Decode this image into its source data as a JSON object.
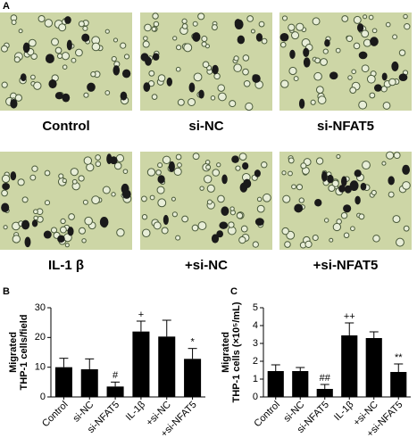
{
  "panel_a": {
    "label": "A",
    "images": [
      "Control",
      "si-NC",
      "si-NFAT5",
      "IL-1 β",
      "+si-NC",
      "+si-NFAT5"
    ]
  },
  "chart_data": [
    {
      "type": "bar",
      "panel": "B",
      "ylabel": [
        "Migrated",
        "THP-1 cells/field"
      ],
      "categories": [
        "Control",
        "si-NC",
        "si-NFAT5",
        "IL-1β",
        "+si-NC",
        "+si-NFAT5"
      ],
      "values": [
        10,
        9.3,
        3.5,
        22,
        20.3,
        12.8
      ],
      "errors": [
        3,
        3.5,
        1.5,
        3.5,
        5.5,
        3.5
      ],
      "annotations": [
        null,
        null,
        "#",
        "+",
        null,
        "*"
      ],
      "color": "#000000",
      "ylim": [
        0,
        30
      ],
      "yticks": [
        0,
        10,
        20,
        30
      ]
    },
    {
      "type": "bar",
      "panel": "C",
      "ylabel": [
        "Migrated",
        "THP-1 cells (×10⁵/mL)"
      ],
      "categories": [
        "Control",
        "si-NC",
        "si-NFAT5",
        "IL-1β",
        "+si-NC",
        "+si-NFAT5"
      ],
      "values": [
        1.45,
        1.45,
        0.45,
        3.45,
        3.3,
        1.4
      ],
      "errors": [
        0.35,
        0.2,
        0.25,
        0.7,
        0.35,
        0.45
      ],
      "annotations": [
        null,
        null,
        "##",
        "++",
        null,
        "**"
      ],
      "color": "#000000",
      "ylim": [
        0,
        5
      ],
      "yticks": [
        0,
        1,
        2,
        3,
        4,
        5
      ]
    }
  ]
}
